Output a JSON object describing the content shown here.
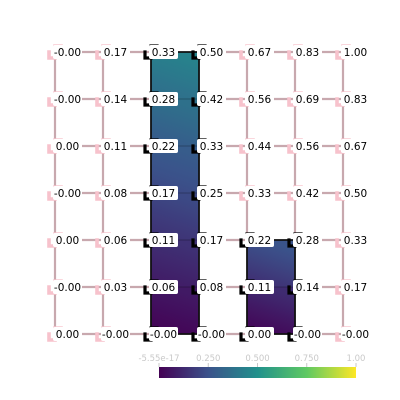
{
  "grid": {
    "rows": [
      [
        "-0.00",
        "0.17",
        "0.33",
        "0.50",
        "0.67",
        "0.83",
        "1.00"
      ],
      [
        "-0.00",
        "0.14",
        "0.28",
        "0.42",
        "0.56",
        "0.69",
        "0.83"
      ],
      [
        "0.00",
        "0.11",
        "0.22",
        "0.33",
        "0.44",
        "0.56",
        "0.67"
      ],
      [
        "-0.00",
        "0.08",
        "0.17",
        "0.25",
        "0.33",
        "0.42",
        "0.50"
      ],
      [
        "0.00",
        "0.06",
        "0.11",
        "0.17",
        "0.22",
        "0.28",
        "0.33"
      ],
      [
        "-0.00",
        "0.03",
        "0.06",
        "0.08",
        "0.11",
        "0.14",
        "0.17"
      ],
      [
        "0.00",
        "-0.00",
        "-0.00",
        "-0.00",
        "0.00",
        "-0.00",
        "-0.00"
      ]
    ],
    "filled_region": [
      {
        "rows": [
          0,
          6
        ],
        "cols": [
          2,
          3
        ]
      },
      {
        "rows": [
          4,
          6
        ],
        "cols": [
          4,
          5
        ]
      }
    ],
    "colors": {
      "outside_edge": "#c8a8ae",
      "corner_marker": "#f7c2cc",
      "inside_marker": "#000000",
      "region_outline": "#111111"
    }
  },
  "colorbar": {
    "ticks": [
      "-5.55e-17",
      "0.250",
      "0.500",
      "0.750",
      "1.00"
    ],
    "range": [
      0,
      1
    ],
    "colormap": [
      "#440154",
      "#3b528b",
      "#21918c",
      "#5ec962",
      "#fde725"
    ]
  }
}
